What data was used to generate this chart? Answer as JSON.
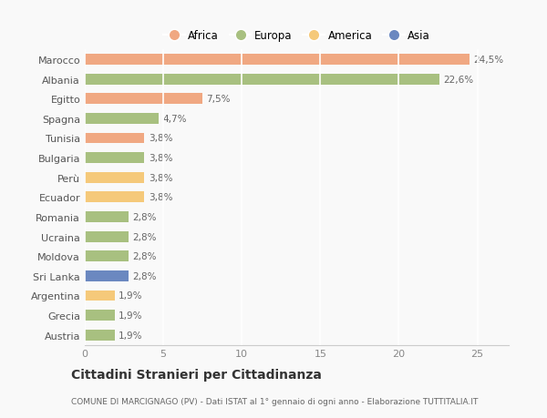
{
  "countries": [
    "Austria",
    "Grecia",
    "Argentina",
    "Sri Lanka",
    "Moldova",
    "Ucraina",
    "Romania",
    "Ecuador",
    "Perù",
    "Bulgaria",
    "Tunisia",
    "Spagna",
    "Egitto",
    "Albania",
    "Marocco"
  ],
  "values": [
    1.9,
    1.9,
    1.9,
    2.8,
    2.8,
    2.8,
    2.8,
    3.8,
    3.8,
    3.8,
    3.8,
    4.7,
    7.5,
    22.6,
    24.5
  ],
  "colors": [
    "#a8c080",
    "#a8c080",
    "#f5c97a",
    "#6b88c0",
    "#a8c080",
    "#a8c080",
    "#a8c080",
    "#f5c97a",
    "#f5c97a",
    "#a8c080",
    "#f0a882",
    "#a8c080",
    "#f0a882",
    "#a8c080",
    "#f0a882"
  ],
  "continent_colors": {
    "Africa": "#f0a882",
    "Europa": "#a8c080",
    "America": "#f5c97a",
    "Asia": "#6b88c0"
  },
  "labels": [
    "1,9%",
    "1,9%",
    "1,9%",
    "2,8%",
    "2,8%",
    "2,8%",
    "2,8%",
    "3,8%",
    "3,8%",
    "3,8%",
    "3,8%",
    "4,7%",
    "7,5%",
    "22,6%",
    "24,5%"
  ],
  "title": "Cittadini Stranieri per Cittadinanza",
  "subtitle": "COMUNE DI MARCIGNAGO (PV) - Dati ISTAT al 1° gennaio di ogni anno - Elaborazione TUTTITALIA.IT",
  "xlim": [
    0,
    27
  ],
  "background_color": "#f9f9f9",
  "grid_color": "#ffffff",
  "bar_height": 0.55,
  "legend_labels": [
    "Africa",
    "Europa",
    "America",
    "Asia"
  ],
  "xticks": [
    0,
    5,
    10,
    15,
    20,
    25
  ]
}
